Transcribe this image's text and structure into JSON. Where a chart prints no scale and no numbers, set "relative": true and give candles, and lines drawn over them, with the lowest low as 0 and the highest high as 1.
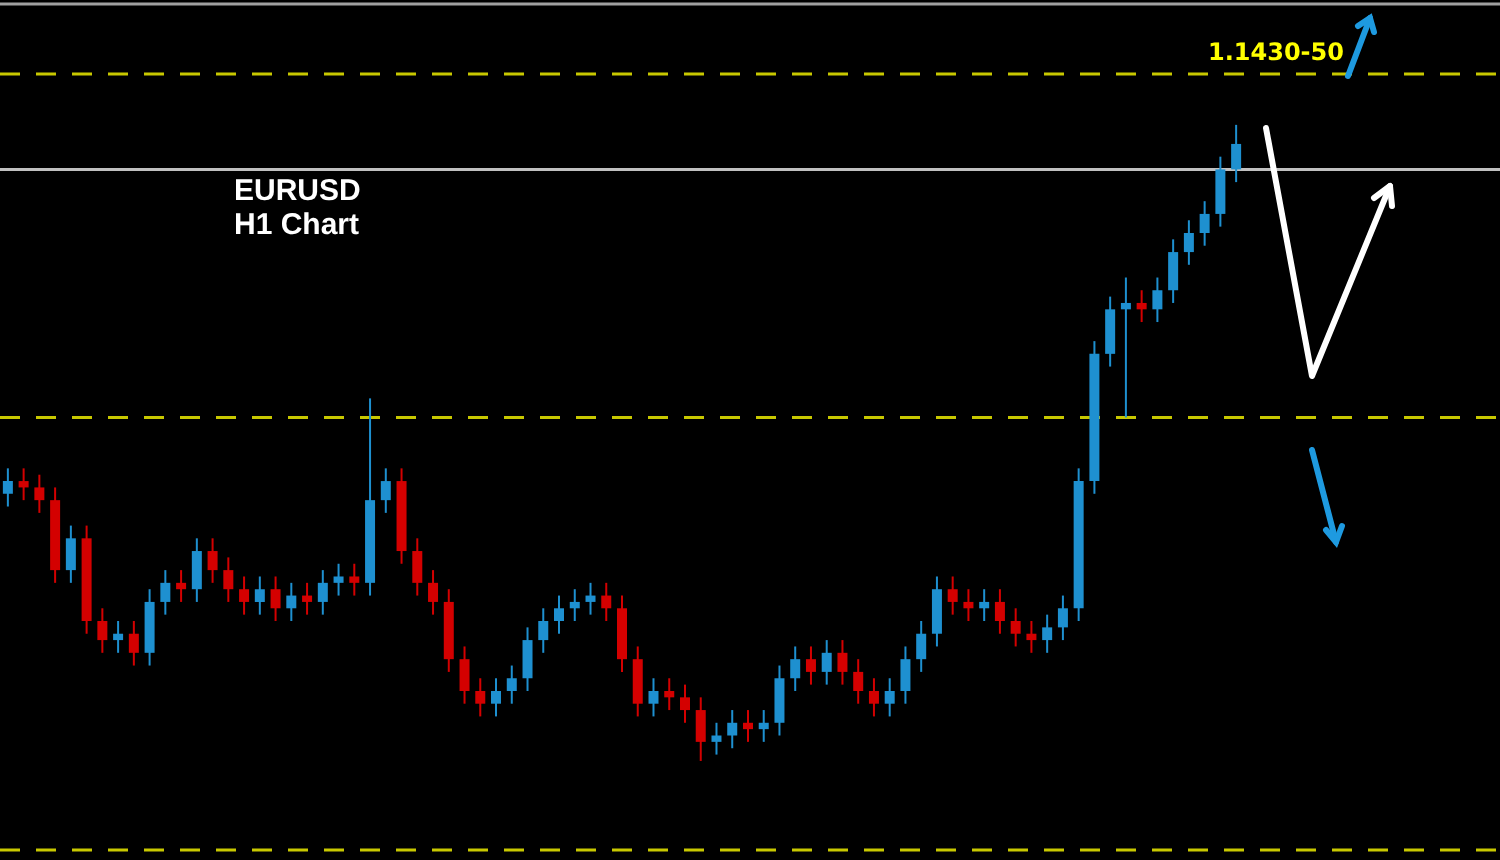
{
  "chart_data": {
    "type": "candlestick",
    "title": "EURUSD",
    "subtitle": "H1 Chart",
    "relative": true,
    "tick_labels": false,
    "grid": false,
    "annotations": [
      "1.1430-50"
    ],
    "categories": [
      null,
      null,
      null,
      null,
      null,
      null,
      null,
      null,
      null,
      null,
      null,
      null,
      null,
      null,
      null,
      null,
      null,
      null,
      null,
      null,
      null,
      null,
      null,
      null,
      null,
      null,
      null,
      null,
      null,
      null,
      null,
      null,
      null,
      null,
      null,
      null,
      null,
      null,
      null,
      null,
      null,
      null,
      null,
      null,
      null,
      null,
      null,
      null,
      null,
      null,
      null,
      null,
      null,
      null,
      null,
      null,
      null,
      null,
      null,
      null,
      null,
      null,
      null,
      null,
      null,
      null,
      null,
      null,
      null,
      null,
      null,
      null,
      null,
      null,
      null,
      null,
      null,
      null,
      null
    ],
    "ohlc": [
      [
        0.42,
        0.46,
        0.4,
        0.44
      ],
      [
        0.44,
        0.46,
        0.41,
        0.43
      ],
      [
        0.43,
        0.45,
        0.39,
        0.41
      ],
      [
        0.41,
        0.43,
        0.28,
        0.3
      ],
      [
        0.3,
        0.37,
        0.28,
        0.35
      ],
      [
        0.35,
        0.37,
        0.2,
        0.22
      ],
      [
        0.22,
        0.24,
        0.17,
        0.19
      ],
      [
        0.19,
        0.22,
        0.17,
        0.2
      ],
      [
        0.2,
        0.22,
        0.15,
        0.17
      ],
      [
        0.17,
        0.27,
        0.15,
        0.25
      ],
      [
        0.25,
        0.3,
        0.23,
        0.28
      ],
      [
        0.28,
        0.3,
        0.25,
        0.27
      ],
      [
        0.27,
        0.35,
        0.25,
        0.33
      ],
      [
        0.33,
        0.35,
        0.28,
        0.3
      ],
      [
        0.3,
        0.32,
        0.25,
        0.27
      ],
      [
        0.27,
        0.29,
        0.23,
        0.25
      ],
      [
        0.25,
        0.29,
        0.23,
        0.27
      ],
      [
        0.27,
        0.29,
        0.22,
        0.24
      ],
      [
        0.24,
        0.28,
        0.22,
        0.26
      ],
      [
        0.26,
        0.28,
        0.23,
        0.25
      ],
      [
        0.25,
        0.3,
        0.23,
        0.28
      ],
      [
        0.28,
        0.31,
        0.26,
        0.29
      ],
      [
        0.29,
        0.31,
        0.26,
        0.28
      ],
      [
        0.28,
        0.57,
        0.26,
        0.41
      ],
      [
        0.41,
        0.46,
        0.39,
        0.44
      ],
      [
        0.44,
        0.46,
        0.31,
        0.33
      ],
      [
        0.33,
        0.35,
        0.26,
        0.28
      ],
      [
        0.28,
        0.3,
        0.23,
        0.25
      ],
      [
        0.25,
        0.27,
        0.14,
        0.16
      ],
      [
        0.16,
        0.18,
        0.09,
        0.11
      ],
      [
        0.11,
        0.13,
        0.07,
        0.09
      ],
      [
        0.09,
        0.13,
        0.07,
        0.11
      ],
      [
        0.11,
        0.15,
        0.09,
        0.13
      ],
      [
        0.13,
        0.21,
        0.11,
        0.19
      ],
      [
        0.19,
        0.24,
        0.17,
        0.22
      ],
      [
        0.22,
        0.26,
        0.2,
        0.24
      ],
      [
        0.24,
        0.27,
        0.22,
        0.25
      ],
      [
        0.25,
        0.28,
        0.23,
        0.26
      ],
      [
        0.26,
        0.28,
        0.22,
        0.24
      ],
      [
        0.24,
        0.26,
        0.14,
        0.16
      ],
      [
        0.16,
        0.18,
        0.07,
        0.09
      ],
      [
        0.09,
        0.13,
        0.07,
        0.11
      ],
      [
        0.11,
        0.13,
        0.08,
        0.1
      ],
      [
        0.1,
        0.12,
        0.06,
        0.08
      ],
      [
        0.08,
        0.1,
        0.0,
        0.03
      ],
      [
        0.03,
        0.06,
        0.01,
        0.04
      ],
      [
        0.04,
        0.08,
        0.02,
        0.06
      ],
      [
        0.06,
        0.08,
        0.03,
        0.05
      ],
      [
        0.05,
        0.08,
        0.03,
        0.06
      ],
      [
        0.06,
        0.15,
        0.04,
        0.13
      ],
      [
        0.13,
        0.18,
        0.11,
        0.16
      ],
      [
        0.16,
        0.18,
        0.12,
        0.14
      ],
      [
        0.14,
        0.19,
        0.12,
        0.17
      ],
      [
        0.17,
        0.19,
        0.12,
        0.14
      ],
      [
        0.14,
        0.16,
        0.09,
        0.11
      ],
      [
        0.11,
        0.13,
        0.07,
        0.09
      ],
      [
        0.09,
        0.13,
        0.07,
        0.11
      ],
      [
        0.11,
        0.18,
        0.09,
        0.16
      ],
      [
        0.16,
        0.22,
        0.14,
        0.2
      ],
      [
        0.2,
        0.29,
        0.18,
        0.27
      ],
      [
        0.27,
        0.29,
        0.23,
        0.25
      ],
      [
        0.25,
        0.27,
        0.22,
        0.24
      ],
      [
        0.24,
        0.27,
        0.22,
        0.25
      ],
      [
        0.25,
        0.27,
        0.2,
        0.22
      ],
      [
        0.22,
        0.24,
        0.18,
        0.2
      ],
      [
        0.2,
        0.22,
        0.17,
        0.19
      ],
      [
        0.19,
        0.23,
        0.17,
        0.21
      ],
      [
        0.21,
        0.26,
        0.19,
        0.24
      ],
      [
        0.24,
        0.46,
        0.22,
        0.44
      ],
      [
        0.44,
        0.66,
        0.42,
        0.64
      ],
      [
        0.64,
        0.73,
        0.62,
        0.71
      ],
      [
        0.71,
        0.76,
        0.54,
        0.72
      ],
      [
        0.72,
        0.74,
        0.69,
        0.71
      ],
      [
        0.71,
        0.76,
        0.69,
        0.74
      ],
      [
        0.74,
        0.82,
        0.72,
        0.8
      ],
      [
        0.8,
        0.85,
        0.78,
        0.83
      ],
      [
        0.83,
        0.88,
        0.81,
        0.86
      ],
      [
        0.86,
        0.95,
        0.84,
        0.93
      ],
      [
        0.93,
        1.0,
        0.91,
        0.97
      ]
    ],
    "colors": [
      "#1e90d0",
      "#d40000",
      "#d40000",
      "#d40000",
      "#1e90d0",
      "#d40000",
      "#d40000",
      "#1e90d0",
      "#d40000",
      "#1e90d0",
      "#1e90d0",
      "#d40000",
      "#1e90d0",
      "#d40000",
      "#d40000",
      "#d40000",
      "#1e90d0",
      "#d40000",
      "#1e90d0",
      "#d40000",
      "#1e90d0",
      "#1e90d0",
      "#d40000",
      "#1e90d0",
      "#1e90d0",
      "#d40000",
      "#d40000",
      "#d40000",
      "#d40000",
      "#d40000",
      "#d40000",
      "#1e90d0",
      "#1e90d0",
      "#1e90d0",
      "#1e90d0",
      "#1e90d0",
      "#1e90d0",
      "#1e90d0",
      "#d40000",
      "#d40000",
      "#d40000",
      "#1e90d0",
      "#d40000",
      "#d40000",
      "#d40000",
      "#1e90d0",
      "#1e90d0",
      "#d40000",
      "#1e90d0",
      "#1e90d0",
      "#1e90d0",
      "#d40000",
      "#1e90d0",
      "#d40000",
      "#d40000",
      "#d40000",
      "#1e90d0",
      "#1e90d0",
      "#1e90d0",
      "#1e90d0",
      "#d40000",
      "#d40000",
      "#1e90d0",
      "#d40000",
      "#d40000",
      "#d40000",
      "#1e90d0",
      "#1e90d0",
      "#1e90d0",
      "#1e90d0",
      "#1e90d0",
      "#1e90d0",
      "#d40000",
      "#1e90d0",
      "#1e90d0",
      "#1e90d0",
      "#1e90d0",
      "#1e90d0",
      "#1e90d0"
    ],
    "ref_lines": [
      {
        "axis": "y",
        "value": 1.19,
        "label": null,
        "color": "#a0a0a0",
        "line_style": "solid"
      },
      {
        "axis": "y",
        "value": 1.08,
        "label": null,
        "color": "#c8c800",
        "line_style": "dashed"
      },
      {
        "axis": "y",
        "value": 0.93,
        "label": null,
        "color": "#c0c0c0",
        "line_style": "solid"
      },
      {
        "axis": "y",
        "value": 0.54,
        "label": null,
        "color": "#c8c800",
        "line_style": "dashed"
      },
      {
        "axis": "y",
        "value": -0.14,
        "label": null,
        "color": "#c8c800",
        "line_style": "dashed"
      }
    ]
  }
}
